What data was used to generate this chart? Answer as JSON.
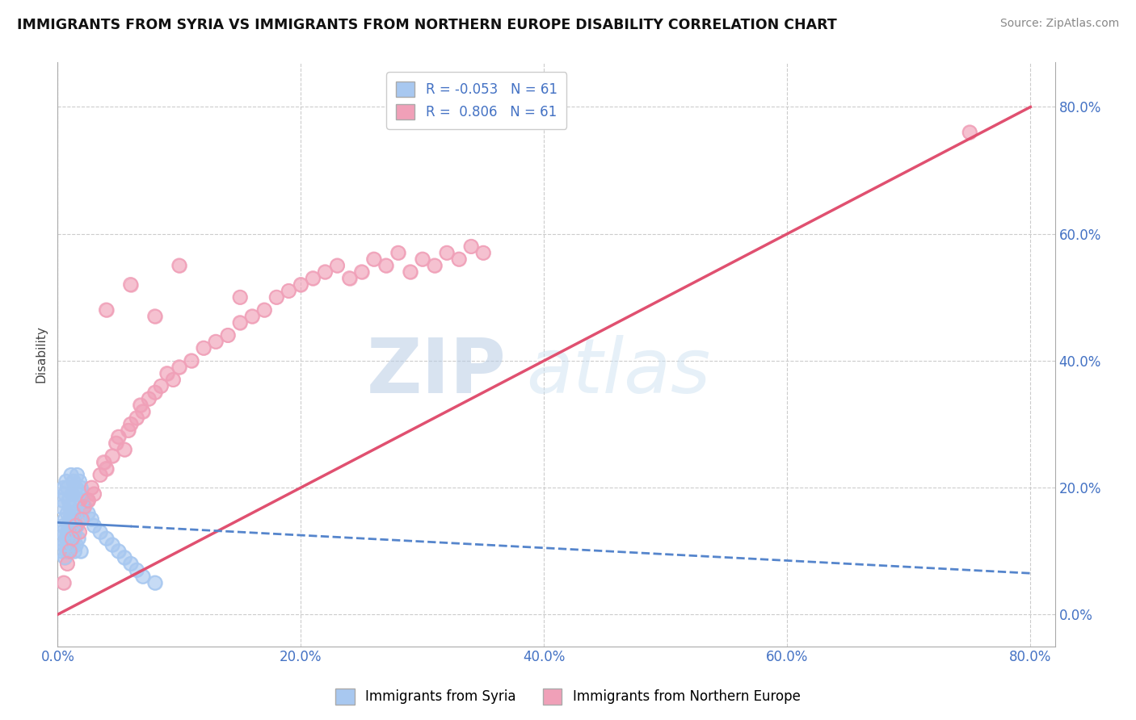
{
  "title": "IMMIGRANTS FROM SYRIA VS IMMIGRANTS FROM NORTHERN EUROPE DISABILITY CORRELATION CHART",
  "source": "Source: ZipAtlas.com",
  "xlim": [
    0,
    0.82
  ],
  "ylim": [
    -0.05,
    0.87
  ],
  "R_syria": -0.053,
  "R_northern": 0.806,
  "N_syria": 61,
  "N_northern": 61,
  "color_syria": "#a8c8f0",
  "color_northern": "#f0a0b8",
  "line_color_syria": "#5585cc",
  "line_color_northern": "#e05070",
  "watermark_zip": "ZIP",
  "watermark_atlas": "atlas",
  "legend_label_syria": "Immigrants from Syria",
  "legend_label_northern": "Immigrants from Northern Europe",
  "syria_x": [
    0.002,
    0.003,
    0.004,
    0.005,
    0.005,
    0.006,
    0.006,
    0.007,
    0.007,
    0.008,
    0.008,
    0.009,
    0.009,
    0.01,
    0.01,
    0.01,
    0.011,
    0.011,
    0.012,
    0.012,
    0.013,
    0.013,
    0.014,
    0.014,
    0.015,
    0.015,
    0.016,
    0.017,
    0.018,
    0.019,
    0.003,
    0.004,
    0.005,
    0.006,
    0.007,
    0.008,
    0.009,
    0.01,
    0.011,
    0.012,
    0.013,
    0.014,
    0.015,
    0.016,
    0.017,
    0.018,
    0.019,
    0.02,
    0.022,
    0.025,
    0.028,
    0.03,
    0.035,
    0.04,
    0.045,
    0.05,
    0.055,
    0.06,
    0.065,
    0.07,
    0.08
  ],
  "syria_y": [
    0.12,
    0.1,
    0.13,
    0.11,
    0.14,
    0.09,
    0.15,
    0.12,
    0.1,
    0.13,
    0.16,
    0.11,
    0.14,
    0.12,
    0.15,
    0.1,
    0.13,
    0.16,
    0.11,
    0.14,
    0.12,
    0.15,
    0.1,
    0.13,
    0.16,
    0.11,
    0.14,
    0.12,
    0.15,
    0.1,
    0.17,
    0.18,
    0.2,
    0.19,
    0.21,
    0.2,
    0.18,
    0.17,
    0.22,
    0.19,
    0.21,
    0.18,
    0.2,
    0.22,
    0.19,
    0.21,
    0.2,
    0.18,
    0.17,
    0.16,
    0.15,
    0.14,
    0.13,
    0.12,
    0.11,
    0.1,
    0.09,
    0.08,
    0.07,
    0.06,
    0.05
  ],
  "northern_x": [
    0.005,
    0.008,
    0.01,
    0.012,
    0.015,
    0.018,
    0.02,
    0.022,
    0.025,
    0.028,
    0.03,
    0.035,
    0.038,
    0.04,
    0.045,
    0.048,
    0.05,
    0.055,
    0.058,
    0.06,
    0.065,
    0.068,
    0.07,
    0.075,
    0.08,
    0.085,
    0.09,
    0.095,
    0.1,
    0.11,
    0.12,
    0.13,
    0.14,
    0.15,
    0.16,
    0.17,
    0.18,
    0.19,
    0.2,
    0.21,
    0.22,
    0.23,
    0.24,
    0.25,
    0.26,
    0.27,
    0.28,
    0.29,
    0.3,
    0.31,
    0.32,
    0.33,
    0.34,
    0.35,
    0.1,
    0.15,
    0.06,
    0.08,
    0.04,
    0.025,
    0.75
  ],
  "northern_y": [
    0.05,
    0.08,
    0.1,
    0.12,
    0.14,
    0.13,
    0.15,
    0.17,
    0.18,
    0.2,
    0.19,
    0.22,
    0.24,
    0.23,
    0.25,
    0.27,
    0.28,
    0.26,
    0.29,
    0.3,
    0.31,
    0.33,
    0.32,
    0.34,
    0.35,
    0.36,
    0.38,
    0.37,
    0.39,
    0.4,
    0.42,
    0.43,
    0.44,
    0.46,
    0.47,
    0.48,
    0.5,
    0.51,
    0.52,
    0.53,
    0.54,
    0.55,
    0.53,
    0.54,
    0.56,
    0.55,
    0.57,
    0.54,
    0.56,
    0.55,
    0.57,
    0.56,
    0.58,
    0.57,
    0.55,
    0.5,
    0.52,
    0.47,
    0.48,
    0.18,
    0.76
  ],
  "tick_vals": [
    0.0,
    0.2,
    0.4,
    0.6,
    0.8
  ],
  "northern_line_x0": 0.0,
  "northern_line_y0": 0.0,
  "northern_line_x1": 0.8,
  "northern_line_y1": 0.8,
  "syria_line_x0": 0.0,
  "syria_line_y0": 0.145,
  "syria_line_x1": 0.8,
  "syria_line_y1": 0.065
}
